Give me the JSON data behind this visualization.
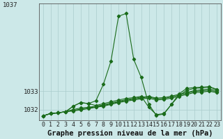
{
  "xlabel": "Graphe pression niveau de la mer (hPa)",
  "x_ticks": [
    0,
    1,
    2,
    3,
    4,
    5,
    6,
    7,
    8,
    9,
    10,
    11,
    12,
    13,
    14,
    15,
    16,
    17,
    18,
    19,
    20,
    21,
    22,
    23
  ],
  "background_color": "#cce8e8",
  "plot_bg": "#cce8e8",
  "grid_color": "#aacccc",
  "line_color": "#1a6b1a",
  "ylim": [
    1031.4,
    1037.8
  ],
  "ytick_labels": [
    "1032",
    "1033"
  ],
  "ytick_vals": [
    1032.0,
    1033.0
  ],
  "series": [
    [
      1031.65,
      1031.78,
      1031.82,
      1031.88,
      1031.92,
      1031.98,
      1032.05,
      1032.12,
      1032.18,
      1032.28,
      1032.38,
      1032.45,
      1032.52,
      1032.58,
      1032.62,
      1032.52,
      1032.55,
      1032.62,
      1032.72,
      1032.82,
      1032.92,
      1032.95,
      1033.0,
      1032.92
    ],
    [
      1031.65,
      1031.78,
      1031.82,
      1031.88,
      1031.95,
      1032.02,
      1032.08,
      1032.15,
      1032.22,
      1032.32,
      1032.42,
      1032.5,
      1032.57,
      1032.63,
      1032.68,
      1032.58,
      1032.6,
      1032.68,
      1032.78,
      1032.88,
      1032.98,
      1033.02,
      1033.05,
      1032.98
    ],
    [
      1031.65,
      1031.78,
      1031.82,
      1031.88,
      1032.0,
      1032.08,
      1032.12,
      1032.18,
      1032.25,
      1032.35,
      1032.45,
      1032.53,
      1032.6,
      1032.67,
      1032.72,
      1032.62,
      1032.65,
      1032.73,
      1032.83,
      1032.93,
      1033.03,
      1033.08,
      1033.12,
      1033.05
    ],
    [
      1031.65,
      1031.78,
      1031.82,
      1031.88,
      1032.18,
      1032.38,
      1032.32,
      1032.22,
      1032.32,
      1032.42,
      1032.52,
      1032.6,
      1032.65,
      1032.72,
      1032.12,
      1031.72,
      1031.78,
      1032.28,
      1032.75,
      1033.05,
      1033.15,
      1033.18,
      1033.22,
      1033.1
    ],
    [
      1031.65,
      1031.78,
      1031.82,
      1031.88,
      1032.18,
      1032.38,
      1032.32,
      1032.48,
      1033.38,
      1034.65,
      1037.1,
      1037.25,
      1034.75,
      1033.75,
      1032.28,
      1031.68,
      1031.75,
      1032.28,
      1032.85,
      1033.15,
      1033.2,
      1033.22,
      1033.25,
      1033.1
    ]
  ],
  "tick_fontsize": 6.5,
  "label_fontsize": 7.5
}
